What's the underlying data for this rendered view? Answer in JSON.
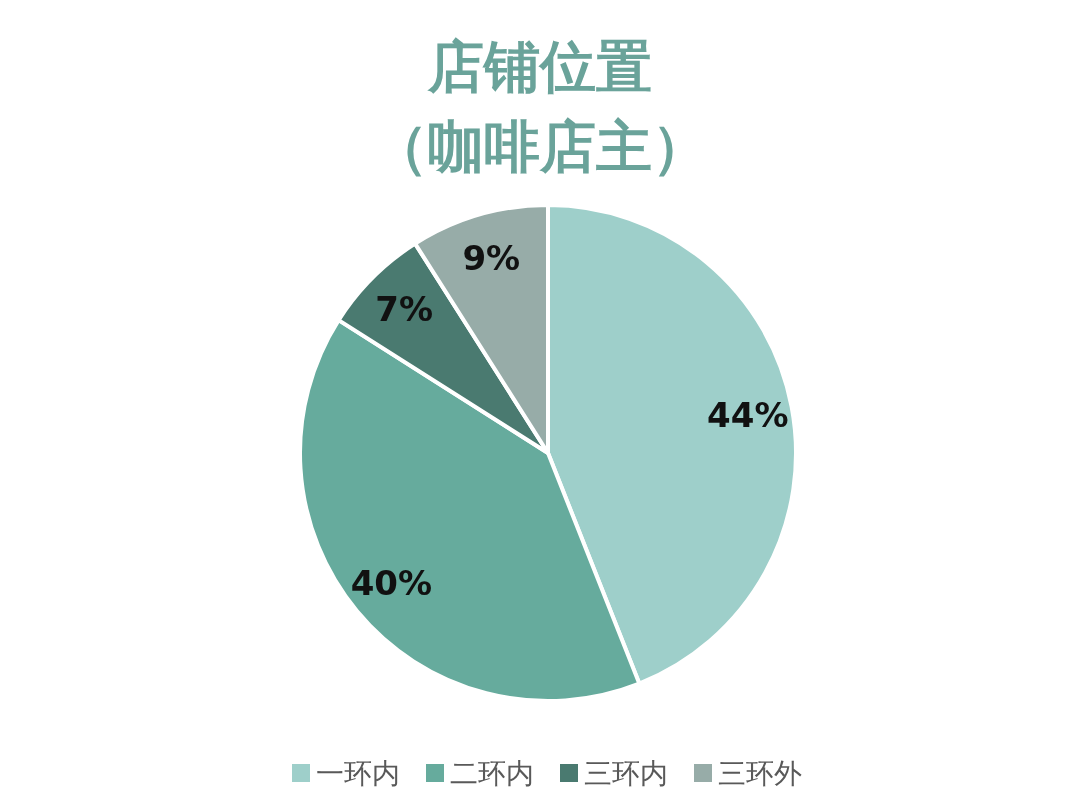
{
  "chart_data": {
    "type": "pie",
    "title": "店铺位置",
    "subtitle": "（咖啡店主）",
    "categories": [
      "一环内",
      "二环内",
      "三环内",
      "三环外"
    ],
    "values": [
      44,
      40,
      7,
      9
    ],
    "colors": [
      "#9ecfca",
      "#66ab9d",
      "#4a7a70",
      "#97aca8"
    ],
    "value_labels": [
      "44%",
      "40%",
      "7%",
      "9%"
    ],
    "legend": "bottom"
  }
}
